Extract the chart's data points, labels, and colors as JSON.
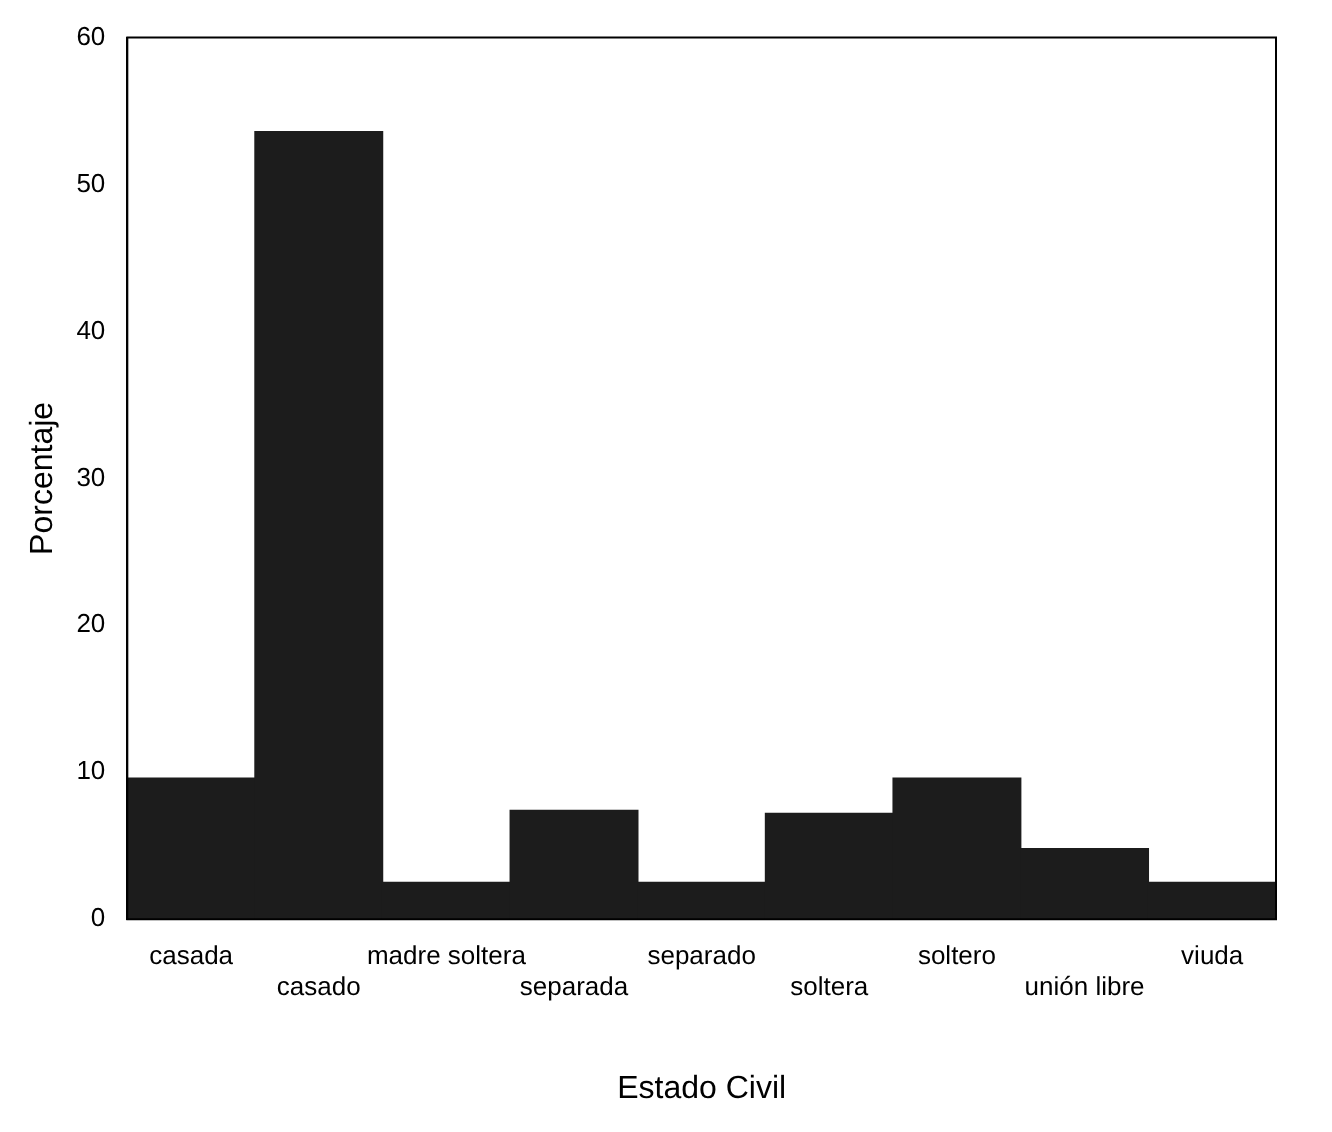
{
  "chart_data": {
    "type": "bar",
    "xlabel": "Estado Civil",
    "ylabel": "Porcentaje",
    "categories": [
      "casada",
      "casado",
      "madre soltera",
      "separada",
      "separado",
      "soltera",
      "soltero",
      "unión libre",
      "viuda"
    ],
    "values": [
      9.6,
      53.6,
      2.5,
      7.4,
      2.5,
      7.2,
      9.6,
      4.8,
      2.5
    ],
    "color": "#1c1c1c",
    "ylim": [
      0,
      60
    ],
    "yticks": [
      0,
      10,
      20,
      30,
      40,
      50,
      60
    ],
    "grid": false,
    "legend": false
  }
}
